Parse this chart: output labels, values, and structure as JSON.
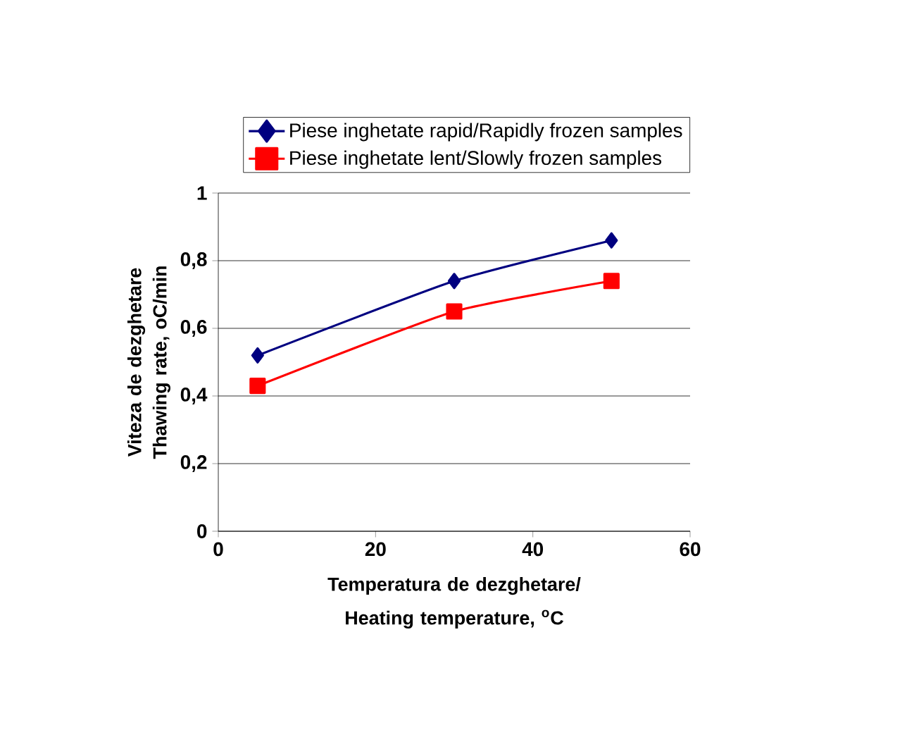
{
  "chart_data": {
    "type": "line",
    "xlabel": "Temperatura de dezghetare/ Heating temperature, $^{o}$C",
    "ylabel": "Viteza de dezghetare Thawing rate, oC/min",
    "x": [
      5,
      30,
      50
    ],
    "series": [
      {
        "name": "Piese inghetate rapid/Rapidly frozen samples",
        "color": "#000080",
        "marker": "diamond",
        "values": [
          0.52,
          0.74,
          0.86
        ]
      },
      {
        "name": "Piese inghetate lent/Slowly frozen samples",
        "color": "#ff0000",
        "marker": "square",
        "values": [
          0.43,
          0.65,
          0.74
        ]
      }
    ],
    "xlim": [
      0,
      60
    ],
    "xticks": [
      0,
      20,
      40,
      60
    ],
    "ylim": [
      0,
      1
    ],
    "yticks": [
      0,
      {
        "value": 0.2,
        "label": "0,2"
      },
      {
        "value": 0.4,
        "label": "0,4"
      },
      {
        "value": 0.6,
        "label": "0,6"
      },
      {
        "value": 0.8,
        "label": "0,8"
      },
      1
    ],
    "grid": "y",
    "legend": "top",
    "line_style": "solid"
  }
}
